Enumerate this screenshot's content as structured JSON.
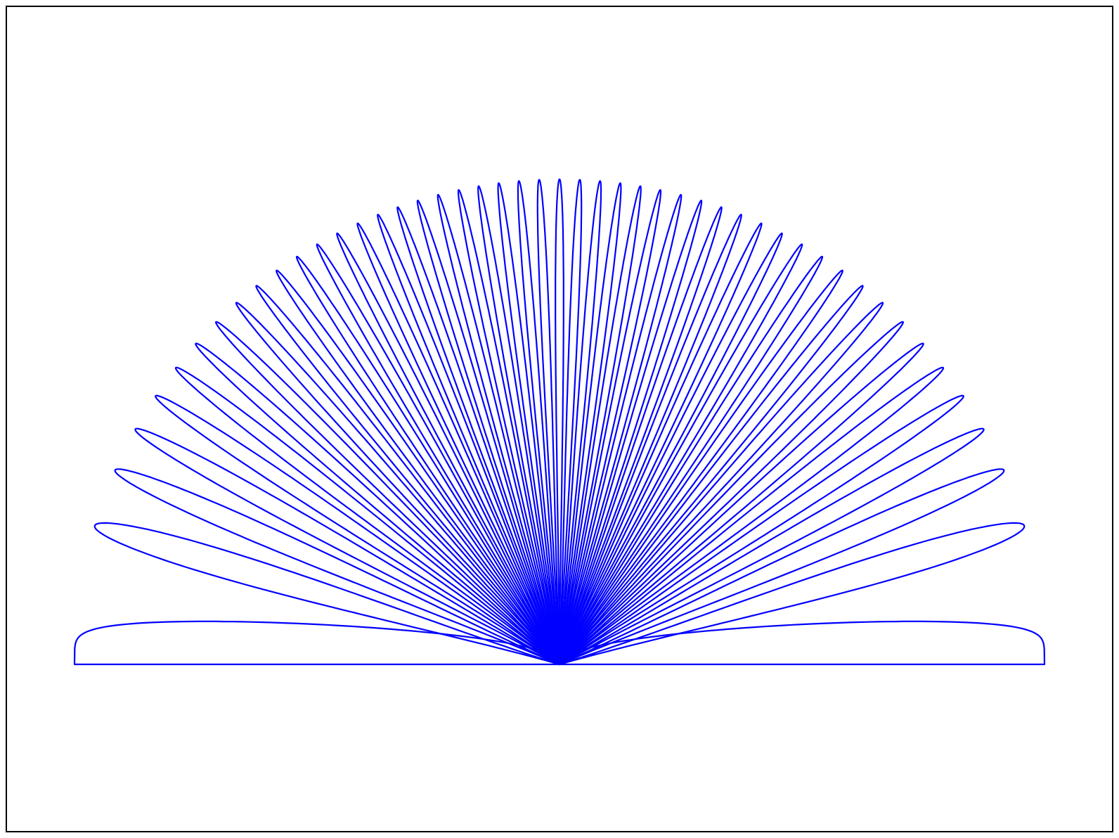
{
  "chart_data": {
    "type": "lobes",
    "color": "#0000ff",
    "directions": [
      -90,
      -73.4,
      -66.4,
      -61.0,
      -56.4,
      -52.3,
      -48.6,
      -45.1,
      -41.8,
      -38.7,
      -35.7,
      -32.8,
      -30.0,
      -27.3,
      -24.6,
      -22.0,
      -19.5,
      -17.0,
      -14.5,
      -12.0,
      -9.6,
      -7.2,
      -4.8,
      -2.4,
      0,
      2.4,
      4.8,
      7.2,
      9.6,
      12.0,
      14.5,
      17.0,
      19.5,
      22.0,
      24.6,
      27.3,
      30.0,
      32.8,
      35.7,
      38.7,
      41.8,
      45.1,
      48.6,
      52.3,
      56.4,
      61.0,
      66.4,
      73.4,
      90
    ]
  }
}
